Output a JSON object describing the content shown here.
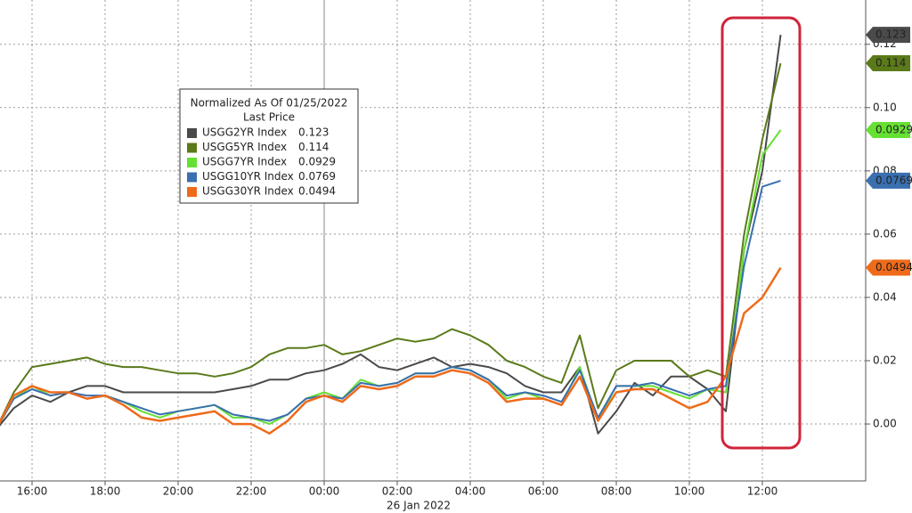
{
  "chart_data": {
    "type": "line",
    "legend_title": "Normalized As Of 01/25/2022",
    "legend_subtitle": "Last Price",
    "date_label": "26 Jan 2022",
    "x": [
      "15:00",
      "15:30",
      "16:00",
      "16:30",
      "17:00",
      "17:30",
      "18:00",
      "18:30",
      "19:00",
      "19:30",
      "20:00",
      "20:30",
      "21:00",
      "21:30",
      "22:00",
      "22:30",
      "23:00",
      "23:30",
      "00:00",
      "00:30",
      "01:00",
      "01:30",
      "02:00",
      "02:30",
      "03:00",
      "03:30",
      "04:00",
      "04:30",
      "05:00",
      "05:30",
      "06:00",
      "06:30",
      "07:00",
      "07:30",
      "08:00",
      "08:30",
      "09:00",
      "09:30",
      "10:00",
      "10:30",
      "11:00",
      "11:30",
      "12:00",
      "12:30"
    ],
    "xticks": [
      "16:00",
      "18:00",
      "20:00",
      "22:00",
      "00:00",
      "02:00",
      "04:00",
      "06:00",
      "08:00",
      "10:00",
      "12:00"
    ],
    "ylim": [
      -0.018,
      0.134
    ],
    "yticks": [
      {
        "value": 0,
        "label": "0.00"
      },
      0.02,
      0.04,
      0.06,
      0.08,
      {
        "value": 0.1,
        "label": "0.10"
      },
      0.12
    ],
    "grid": true,
    "series": [
      {
        "name": "USGG2YR Index",
        "color": "#4a4a4a",
        "last": 0.123,
        "values": [
          -0.002,
          0.005,
          0.009,
          0.007,
          0.01,
          0.012,
          0.012,
          0.01,
          0.01,
          0.01,
          0.01,
          0.01,
          0.01,
          0.011,
          0.012,
          0.014,
          0.014,
          0.016,
          0.017,
          0.019,
          0.022,
          0.018,
          0.017,
          0.019,
          0.021,
          0.018,
          0.019,
          0.018,
          0.016,
          0.012,
          0.01,
          0.01,
          0.018,
          -0.003,
          0.004,
          0.013,
          0.009,
          0.015,
          0.015,
          0.011,
          0.004,
          0.055,
          0.08,
          0.123
        ]
      },
      {
        "name": "USGG5YR Index",
        "color": "#5b7a1a",
        "last": 0.114,
        "values": [
          -0.002,
          0.01,
          0.018,
          0.019,
          0.02,
          0.021,
          0.019,
          0.018,
          0.018,
          0.017,
          0.016,
          0.016,
          0.015,
          0.016,
          0.018,
          0.022,
          0.024,
          0.024,
          0.025,
          0.022,
          0.023,
          0.025,
          0.027,
          0.026,
          0.027,
          0.03,
          0.028,
          0.025,
          0.02,
          0.018,
          0.015,
          0.013,
          0.028,
          0.005,
          0.017,
          0.02,
          0.02,
          0.02,
          0.015,
          0.017,
          0.015,
          0.06,
          0.09,
          0.114
        ]
      },
      {
        "name": "USGG7YR Index",
        "color": "#66e033",
        "last": 0.0929,
        "values": [
          -0.002,
          0.008,
          0.012,
          0.009,
          0.01,
          0.008,
          0.009,
          0.007,
          0.004,
          0.002,
          0.004,
          0.005,
          0.006,
          0.002,
          0.002,
          0.0,
          0.003,
          0.008,
          0.01,
          0.008,
          0.014,
          0.012,
          0.013,
          0.016,
          0.016,
          0.018,
          0.017,
          0.014,
          0.008,
          0.01,
          0.008,
          0.006,
          0.018,
          0.001,
          0.012,
          0.012,
          0.012,
          0.01,
          0.008,
          0.011,
          0.01,
          0.055,
          0.085,
          0.0929
        ]
      },
      {
        "name": "USGG10YR Index",
        "color": "#3a6fb0",
        "last": 0.0769,
        "values": [
          -0.002,
          0.008,
          0.011,
          0.009,
          0.01,
          0.009,
          0.009,
          0.007,
          0.005,
          0.003,
          0.004,
          0.005,
          0.006,
          0.003,
          0.002,
          0.001,
          0.003,
          0.008,
          0.009,
          0.008,
          0.013,
          0.012,
          0.013,
          0.016,
          0.016,
          0.018,
          0.017,
          0.014,
          0.009,
          0.01,
          0.009,
          0.007,
          0.017,
          0.002,
          0.012,
          0.012,
          0.013,
          0.011,
          0.009,
          0.011,
          0.012,
          0.05,
          0.075,
          0.0769
        ]
      },
      {
        "name": "USGG30YR Index",
        "color": "#ef6a1a",
        "last": 0.0494,
        "values": [
          -0.002,
          0.009,
          0.012,
          0.01,
          0.01,
          0.008,
          0.009,
          0.006,
          0.002,
          0.001,
          0.002,
          0.003,
          0.004,
          0.0,
          0.0,
          -0.003,
          0.001,
          0.007,
          0.009,
          0.007,
          0.012,
          0.011,
          0.012,
          0.015,
          0.015,
          0.017,
          0.016,
          0.013,
          0.007,
          0.008,
          0.008,
          0.006,
          0.015,
          0.001,
          0.01,
          0.011,
          0.011,
          0.008,
          0.005,
          0.007,
          0.015,
          0.035,
          0.04,
          0.0494
        ]
      }
    ]
  }
}
